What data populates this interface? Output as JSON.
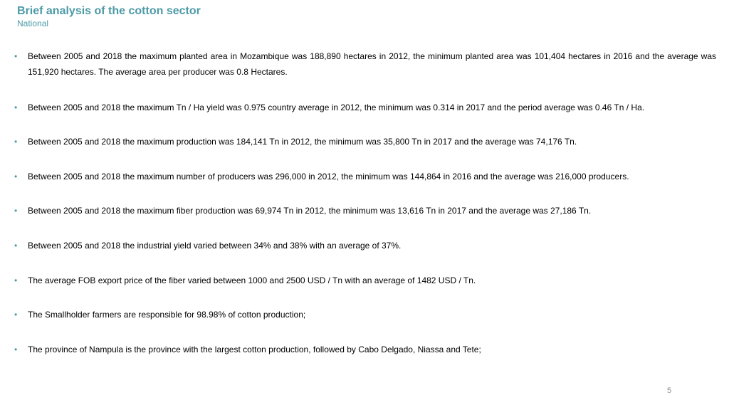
{
  "header": {
    "title": "Brief analysis of the cotton sector",
    "subtitle": "National"
  },
  "bullet_glyph": "•",
  "bullets": [
    "Between 2005 and 2018 the maximum planted area in Mozambique was 188,890 hectares in 2012, the minimum planted area was 101,404 hectares in 2016 and the average was 151,920 hectares. The average area per producer was 0.8 Hectares.",
    "Between 2005 and 2018 the maximum Tn / Ha yield was 0.975 country average in 2012, the minimum was 0.314 in 2017 and the period average was 0.46 Tn / Ha.",
    "Between 2005 and 2018 the maximum production was 184,141 Tn in 2012, the minimum was 35,800 Tn in 2017 and the average was 74,176 Tn.",
    "Between 2005 and 2018 the maximum number of producers was 296,000 in 2012, the minimum was 144,864 in 2016 and the average was 216,000 producers.",
    "Between 2005 and 2018 the maximum fiber production was 69,974 Tn in 2012, the minimum was 13,616 Tn in 2017 and the average was 27,186 Tn.",
    "Between 2005 and 2018 the industrial yield varied between 34% and 38% with an average of 37%.",
    "The average FOB export price of the fiber varied between 1000 and 2500 USD / Tn with an average of 1482 USD / Tn.",
    "The Smallholder farmers are responsible for 98.98% of cotton production;",
    "The province of Nampula is the province with the largest cotton production, followed by Cabo Delgado, Niassa and Tete;"
  ],
  "page_number": "5",
  "colors": {
    "accent": "#4c9aa6",
    "text": "#000000",
    "page_number": "#8a8a8a"
  }
}
